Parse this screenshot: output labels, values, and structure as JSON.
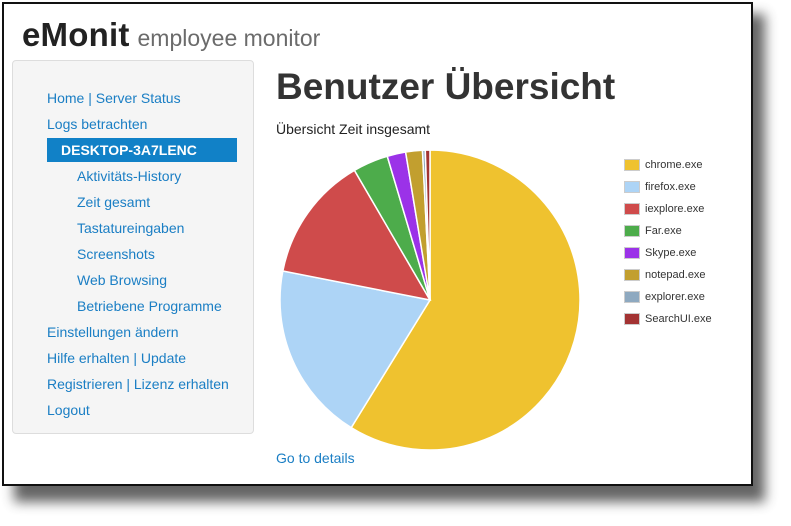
{
  "brand": {
    "name": "eMonit",
    "tagline": "employee monitor"
  },
  "sidebar": {
    "items": [
      {
        "label": "Home | Server Status",
        "level": 0
      },
      {
        "label": "Logs betrachten",
        "level": 0
      },
      {
        "label": "DESKTOP-3A7LENC",
        "level": 1,
        "active": true
      },
      {
        "label": "Aktivitäts-History",
        "level": 2
      },
      {
        "label": "Zeit gesamt",
        "level": 2
      },
      {
        "label": "Tastatureingaben",
        "level": 2
      },
      {
        "label": "Screenshots",
        "level": 2
      },
      {
        "label": "Web Browsing",
        "level": 2
      },
      {
        "label": "Betriebene Programme",
        "level": 2
      },
      {
        "label": "Einstellungen ändern",
        "level": 0
      },
      {
        "label": "Hilfe erhalten | Update",
        "level": 0
      },
      {
        "label": "Registrieren | Lizenz erhalten",
        "level": 0
      },
      {
        "label": "Logout",
        "level": 0
      }
    ]
  },
  "main": {
    "title": "Benutzer Übersicht",
    "details_link": "Go to details"
  },
  "colors": {
    "link": "#1a7ec4",
    "active_bg": "#1181c7"
  },
  "chart_data": {
    "type": "pie",
    "title": "Übersicht Zeit insgesamt",
    "legend_position": "right",
    "labels": [
      "chrome.exe",
      "firefox.exe",
      "iexplore.exe",
      "Far.exe",
      "Skype.exe",
      "notepad.exe",
      "explorer.exe",
      "SearchUI.exe"
    ],
    "values": [
      58.8,
      19.3,
      13.5,
      3.8,
      2.0,
      1.8,
      0.3,
      0.5
    ],
    "colors": [
      "#efc22f",
      "#add4f6",
      "#cf4b4b",
      "#4dac4b",
      "#9b32e8",
      "#c29f2f",
      "#8ea9c0",
      "#a33333"
    ]
  }
}
